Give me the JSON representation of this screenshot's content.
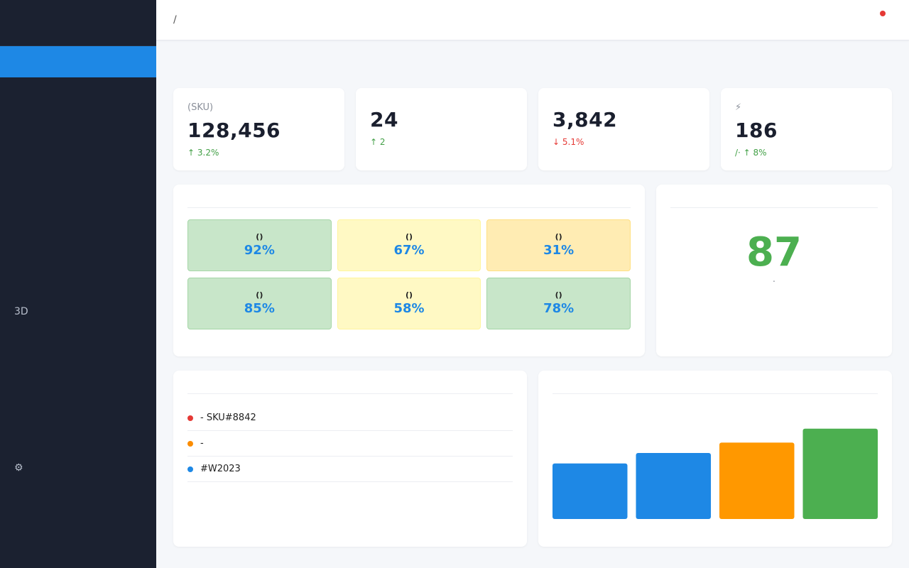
{
  "sidebar": {
    "logo_glyph": "",
    "logo_text": "",
    "items": [
      {
        "label": " ",
        "active": true
      },
      {
        "label": " "
      },
      {
        "label": " "
      },
      {
        "label": " "
      },
      {
        "label": " "
      },
      {
        "label": " "
      },
      {
        "label": " "
      },
      {
        "label": " "
      },
      {
        "label": " 3D"
      },
      {
        "label": " "
      },
      {
        "label": " "
      },
      {
        "label": " "
      },
      {
        "label": " "
      },
      {
        "label": "⚙ "
      }
    ]
  },
  "topbar": {
    "breadcrumb": " / ",
    "bell_icon": "",
    "user": " "
  },
  "page": {
    "title": " "
  },
  "kpis": [
    {
      "label": "  (SKU)",
      "value": "128,456",
      "sub": "↑ 3.2% ",
      "trend": "up"
    },
    {
      "label": " ",
      "value": "24",
      "sub": "↑ 2 ",
      "trend": "up"
    },
    {
      "label": " ",
      "value": "3,842",
      "sub": "↓ 5.1% ",
      "trend": "down"
    },
    {
      "label": "⚡ ",
      "value": "186",
      "sub": "/· ↑ 8%",
      "trend": "up"
    }
  ],
  "warehouse": {
    "title": " ",
    "cells": [
      {
        "name": "()",
        "pct": "92%",
        "sub": "",
        "level": "high"
      },
      {
        "name": "()",
        "pct": "67%",
        "sub": "",
        "level": "mid"
      },
      {
        "name": "()",
        "pct": "31%",
        "sub": "",
        "level": "low"
      },
      {
        "name": "()",
        "pct": "85%",
        "sub": "",
        "level": "high"
      },
      {
        "name": "()",
        "pct": "58%",
        "sub": "",
        "level": "mid"
      },
      {
        "name": "()",
        "pct": "78%",
        "sub": "",
        "level": "high"
      }
    ]
  },
  "score": {
    "title": " ",
    "value": "87",
    "sub": " · "
  },
  "alerts": {
    "title": " ",
    "items": [
      {
        "text": " - SKU#8842 ",
        "tag": "",
        "color": "#e53935"
      },
      {
        "text": " -  ",
        "tag": "",
        "color": "#fb8c00"
      },
      {
        "text": " #W2023 ",
        "tag": "",
        "color": "#1e88e5"
      }
    ]
  },
  "chart": {
    "title": " "
  },
  "chart_data": {
    "type": "bar",
    "categories": [
      "",
      "",
      "",
      ""
    ],
    "values": [
      80,
      95,
      110,
      130
    ],
    "colors": [
      "#1e88e5",
      "#1e88e5",
      "#ff9800",
      "#4caf50"
    ],
    "ylim": [
      0,
      140
    ],
    "grid": false
  },
  "colors": {
    "accent": "#1e88e5",
    "up": "#43a047",
    "down": "#e53935",
    "score": "#4caf50",
    "level_high_bg": "#c8e6c9",
    "level_high_border": "#a5d6a7",
    "level_mid_bg": "#fff9c4",
    "level_mid_border": "#fff59d",
    "level_low_bg": "#ffecb3",
    "level_low_border": "#ffe082"
  }
}
